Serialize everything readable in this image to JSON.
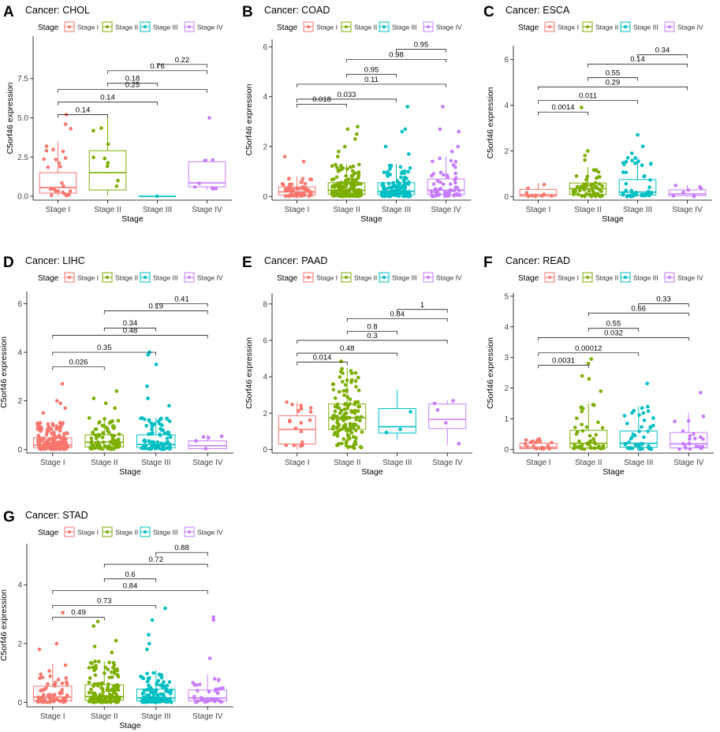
{
  "figure": {
    "stage_colors": {
      "Stage I": "#F8766D",
      "Stage II": "#7CAE00",
      "Stage III": "#00BFC4",
      "Stage IV": "#C77CFF"
    },
    "legend_title": "Stage",
    "legend_labels": [
      "Stage I",
      "Stage II",
      "Stage III",
      "Stage IV"
    ]
  },
  "chart_data": [
    {
      "panel": "A",
      "title": "Cancer: CHOL",
      "type": "boxplot",
      "categories": [
        "Stage I",
        "Stage II",
        "Stage III",
        "Stage IV"
      ],
      "xlabel": "Stage",
      "ylabel": "C5orf46 expression",
      "yticks": [
        0.0,
        2.5,
        5.0,
        7.5
      ],
      "ytick_labels": [
        "0.0",
        "2.5",
        "5.0",
        "7.5"
      ],
      "ylim": [
        -0.25,
        10.2
      ],
      "boxes": [
        {
          "min": 0,
          "q1": 0.2,
          "median": 0.55,
          "q3": 1.5,
          "max": 3.5,
          "n": 22
        },
        {
          "min": 0.05,
          "q1": 0.4,
          "median": 1.5,
          "q3": 2.9,
          "max": 5.0,
          "n": 9
        },
        {
          "min": 0,
          "q1": 0,
          "median": 0,
          "q3": 0,
          "max": 0,
          "n": 1
        },
        {
          "min": 0.4,
          "q1": 0.6,
          "median": 0.85,
          "q3": 2.2,
          "max": 2.4,
          "n": 7
        }
      ],
      "outliers": [
        [
          0,
          5.2
        ],
        [
          0,
          4.6
        ],
        [
          0,
          4.3
        ],
        [
          3,
          5.0
        ]
      ],
      "pvalues": [
        {
          "a": 2,
          "b": 3,
          "label": "0.22",
          "y": 8.4
        },
        {
          "a": 1,
          "b": 3,
          "label": "0.76",
          "y": 8.0
        },
        {
          "a": 1,
          "b": 2,
          "label": "0.18",
          "y": 7.2
        },
        {
          "a": 0,
          "b": 3,
          "label": "0.25",
          "y": 6.8
        },
        {
          "a": 0,
          "b": 2,
          "label": "0.14",
          "y": 6.0
        },
        {
          "a": 0,
          "b": 1,
          "label": "0.14",
          "y": 5.2
        }
      ]
    },
    {
      "panel": "B",
      "title": "Cancer: COAD",
      "type": "boxplot",
      "categories": [
        "Stage I",
        "Stage II",
        "Stage III",
        "Stage IV"
      ],
      "xlabel": "Stage",
      "ylabel": "C5orf46 expression",
      "yticks": [
        0,
        2,
        4,
        6
      ],
      "ytick_labels": [
        "0",
        "2",
        "4",
        "6"
      ],
      "ylim": [
        -0.15,
        6.3
      ],
      "boxes": [
        {
          "min": 0,
          "q1": 0.05,
          "median": 0.18,
          "q3": 0.38,
          "max": 0.8,
          "n": 60
        },
        {
          "min": 0,
          "q1": 0.08,
          "median": 0.25,
          "q3": 0.55,
          "max": 1.3,
          "n": 160
        },
        {
          "min": 0,
          "q1": 0.07,
          "median": 0.2,
          "q3": 0.55,
          "max": 1.3,
          "n": 110
        },
        {
          "min": 0,
          "q1": 0.07,
          "median": 0.25,
          "q3": 0.7,
          "max": 1.6,
          "n": 60
        }
      ],
      "outliers": [
        [
          0,
          1.6
        ],
        [
          0,
          1.4
        ],
        [
          1,
          2.8
        ],
        [
          1,
          2.7
        ],
        [
          1,
          2.5
        ],
        [
          1,
          2.3
        ],
        [
          1,
          2.0
        ],
        [
          1,
          1.8
        ],
        [
          1,
          1.6
        ],
        [
          2,
          3.6
        ],
        [
          2,
          2.7
        ],
        [
          2,
          2.6
        ],
        [
          2,
          2.0
        ],
        [
          2,
          1.7
        ],
        [
          3,
          3.6
        ],
        [
          3,
          2.7
        ],
        [
          3,
          2.6
        ],
        [
          3,
          2.0
        ],
        [
          3,
          1.8
        ]
      ],
      "pvalues": [
        {
          "a": 2,
          "b": 3,
          "label": "0.95",
          "y": 5.9
        },
        {
          "a": 1,
          "b": 3,
          "label": "0.98",
          "y": 5.5
        },
        {
          "a": 1,
          "b": 2,
          "label": "0.95",
          "y": 4.9
        },
        {
          "a": 0,
          "b": 3,
          "label": "0.11",
          "y": 4.5
        },
        {
          "a": 0,
          "b": 2,
          "label": "0.033",
          "y": 3.9
        },
        {
          "a": 0,
          "b": 1,
          "label": "0.018",
          "y": 3.7
        }
      ]
    },
    {
      "panel": "C",
      "title": "Cancer: ESCA",
      "type": "boxplot",
      "categories": [
        "Stage I",
        "Stage II",
        "Stage III",
        "Stage IV"
      ],
      "xlabel": "Stage",
      "ylabel": "C5orf46 expression",
      "yticks": [
        0,
        2,
        4,
        6
      ],
      "ytick_labels": [
        "0",
        "2",
        "4",
        "6"
      ],
      "ylim": [
        -0.15,
        6.6
      ],
      "boxes": [
        {
          "min": 0,
          "q1": 0.02,
          "median": 0.08,
          "q3": 0.32,
          "max": 0.6,
          "n": 10
        },
        {
          "min": 0,
          "q1": 0.1,
          "median": 0.35,
          "q3": 0.6,
          "max": 1.3,
          "n": 60
        },
        {
          "min": 0,
          "q1": 0.07,
          "median": 0.2,
          "q3": 0.75,
          "max": 1.7,
          "n": 50
        },
        {
          "min": 0,
          "q1": 0.04,
          "median": 0.12,
          "q3": 0.3,
          "max": 0.5,
          "n": 8
        }
      ],
      "outliers": [
        [
          1,
          3.9
        ],
        [
          1,
          2.0
        ],
        [
          1,
          1.8
        ],
        [
          1,
          1.6
        ],
        [
          2,
          2.7
        ],
        [
          2,
          2.2
        ],
        [
          2,
          1.9
        ],
        [
          2,
          1.7
        ]
      ],
      "pvalues": [
        {
          "a": 2,
          "b": 3,
          "label": "0.34",
          "y": 6.2
        },
        {
          "a": 1,
          "b": 3,
          "label": "0.14",
          "y": 5.8
        },
        {
          "a": 1,
          "b": 2,
          "label": "0.55",
          "y": 5.2
        },
        {
          "a": 0,
          "b": 3,
          "label": "0.29",
          "y": 4.8
        },
        {
          "a": 0,
          "b": 2,
          "label": "0.011",
          "y": 4.2
        },
        {
          "a": 0,
          "b": 1,
          "label": "0.0014",
          "y": 3.7
        }
      ]
    },
    {
      "panel": "D",
      "title": "Cancer: LIHC",
      "type": "boxplot",
      "categories": [
        "Stage I",
        "Stage II",
        "Stage III",
        "Stage IV"
      ],
      "xlabel": "Stage",
      "ylabel": "C5orf46 expression",
      "yticks": [
        0,
        2,
        4,
        6
      ],
      "ytick_labels": [
        "0",
        "2",
        "4",
        "6"
      ],
      "ylim": [
        -0.15,
        6.5
      ],
      "boxes": [
        {
          "min": 0,
          "q1": 0.07,
          "median": 0.18,
          "q3": 0.48,
          "max": 1.1,
          "n": 170
        },
        {
          "min": 0,
          "q1": 0.1,
          "median": 0.3,
          "q3": 0.6,
          "max": 1.3,
          "n": 85
        },
        {
          "min": 0,
          "q1": 0.07,
          "median": 0.2,
          "q3": 0.6,
          "max": 1.3,
          "n": 85
        },
        {
          "min": 0,
          "q1": 0.03,
          "median": 0.15,
          "q3": 0.35,
          "max": 0.6,
          "n": 5
        }
      ],
      "outliers": [
        [
          0,
          2.7
        ],
        [
          0,
          2.0
        ],
        [
          0,
          1.9
        ],
        [
          0,
          1.7
        ],
        [
          0,
          1.5
        ],
        [
          1,
          2.4
        ],
        [
          1,
          2.1
        ],
        [
          1,
          1.9
        ],
        [
          1,
          1.7
        ],
        [
          2,
          4.0
        ],
        [
          2,
          3.9
        ],
        [
          2,
          3.5
        ],
        [
          2,
          2.6
        ],
        [
          2,
          2.1
        ],
        [
          2,
          1.8
        ]
      ],
      "pvalues": [
        {
          "a": 2,
          "b": 3,
          "label": "0.41",
          "y": 6.0
        },
        {
          "a": 1,
          "b": 3,
          "label": "0.19",
          "y": 5.7
        },
        {
          "a": 1,
          "b": 2,
          "label": "0.34",
          "y": 5.0
        },
        {
          "a": 0,
          "b": 3,
          "label": "0.48",
          "y": 4.7
        },
        {
          "a": 0,
          "b": 2,
          "label": "0.35",
          "y": 4.0
        },
        {
          "a": 0,
          "b": 1,
          "label": "0.026",
          "y": 3.4
        }
      ]
    },
    {
      "panel": "E",
      "title": "Cancer: PAAD",
      "type": "boxplot",
      "categories": [
        "Stage I",
        "Stage II",
        "Stage III",
        "Stage IV"
      ],
      "xlabel": "Stage",
      "ylabel": "C5orf46 expression",
      "yticks": [
        0,
        2,
        4,
        6,
        8
      ],
      "ytick_labels": [
        "0",
        "2",
        "4",
        "6",
        "8"
      ],
      "ylim": [
        -0.2,
        8.6
      ],
      "boxes": [
        {
          "min": 0,
          "q1": 0.3,
          "median": 1.1,
          "q3": 1.85,
          "max": 2.6,
          "n": 20
        },
        {
          "min": 0,
          "q1": 1.1,
          "median": 1.75,
          "q3": 2.5,
          "max": 4.5,
          "n": 140
        },
        {
          "min": 0.55,
          "q1": 0.9,
          "median": 1.25,
          "q3": 2.25,
          "max": 3.3,
          "n": 3
        },
        {
          "min": 0.25,
          "q1": 1.15,
          "median": 1.65,
          "q3": 2.5,
          "max": 2.7,
          "n": 5
        }
      ],
      "outliers": [
        [
          1,
          4.85
        ]
      ],
      "pvalues": [
        {
          "a": 2,
          "b": 3,
          "label": "1",
          "y": 7.7
        },
        {
          "a": 1,
          "b": 3,
          "label": "0.84",
          "y": 7.2
        },
        {
          "a": 1,
          "b": 2,
          "label": "0.8",
          "y": 6.5
        },
        {
          "a": 0,
          "b": 3,
          "label": "0.3",
          "y": 6.0
        },
        {
          "a": 0,
          "b": 2,
          "label": "0.48",
          "y": 5.3
        },
        {
          "a": 0,
          "b": 1,
          "label": "0.014",
          "y": 4.8
        }
      ]
    },
    {
      "panel": "F",
      "title": "Cancer: READ",
      "type": "boxplot",
      "categories": [
        "Stage I",
        "Stage II",
        "Stage III",
        "Stage IV"
      ],
      "xlabel": "Stage",
      "ylabel": "C5orf46 expression",
      "yticks": [
        0,
        1,
        2,
        3,
        4,
        5
      ],
      "ytick_labels": [
        "0",
        "1",
        "2",
        "3",
        "4",
        "5"
      ],
      "ylim": [
        -0.12,
        5.1
      ],
      "boxes": [
        {
          "min": 0,
          "q1": 0.02,
          "median": 0.07,
          "q3": 0.2,
          "max": 0.35,
          "n": 20
        },
        {
          "min": 0,
          "q1": 0.05,
          "median": 0.2,
          "q3": 0.62,
          "max": 1.5,
          "n": 45
        },
        {
          "min": 0,
          "q1": 0.07,
          "median": 0.2,
          "q3": 0.6,
          "max": 1.4,
          "n": 45
        },
        {
          "min": 0,
          "q1": 0.05,
          "median": 0.18,
          "q3": 0.55,
          "max": 1.2,
          "n": 22
        }
      ],
      "outliers": [
        [
          1,
          2.95
        ],
        [
          1,
          2.8
        ],
        [
          1,
          2.4
        ],
        [
          1,
          2.3
        ],
        [
          1,
          1.9
        ],
        [
          2,
          2.15
        ],
        [
          3,
          1.85
        ]
      ],
      "pvalues": [
        {
          "a": 2,
          "b": 3,
          "label": "0.33",
          "y": 4.75
        },
        {
          "a": 1,
          "b": 3,
          "label": "0.66",
          "y": 4.45
        },
        {
          "a": 1,
          "b": 2,
          "label": "0.55",
          "y": 3.95
        },
        {
          "a": 0,
          "b": 3,
          "label": "0.032",
          "y": 3.65
        },
        {
          "a": 0,
          "b": 2,
          "label": "0.00012",
          "y": 3.15
        },
        {
          "a": 0,
          "b": 1,
          "label": "0.0031",
          "y": 2.75
        }
      ]
    },
    {
      "panel": "G",
      "title": "Cancer: STAD",
      "type": "boxplot",
      "categories": [
        "Stage I",
        "Stage II",
        "Stage III",
        "Stage IV"
      ],
      "xlabel": "Stage",
      "ylabel": "C5orf46 expression",
      "yticks": [
        0,
        2,
        4
      ],
      "ytick_labels": [
        "0",
        "2",
        "4"
      ],
      "ylim": [
        -0.15,
        5.4
      ],
      "boxes": [
        {
          "min": 0,
          "q1": 0.05,
          "median": 0.18,
          "q3": 0.55,
          "max": 1.3,
          "n": 60
        },
        {
          "min": 0,
          "q1": 0.07,
          "median": 0.2,
          "q3": 0.6,
          "max": 1.4,
          "n": 140
        },
        {
          "min": 0,
          "q1": 0.05,
          "median": 0.15,
          "q3": 0.45,
          "max": 1.1,
          "n": 120
        },
        {
          "min": 0,
          "q1": 0.05,
          "median": 0.15,
          "q3": 0.42,
          "max": 0.95,
          "n": 40
        }
      ],
      "outliers": [
        [
          0,
          3.05
        ],
        [
          0,
          2.0
        ],
        [
          0,
          1.8
        ],
        [
          1,
          2.75
        ],
        [
          1,
          2.6
        ],
        [
          1,
          2.1
        ],
        [
          1,
          1.9
        ],
        [
          1,
          1.7
        ],
        [
          2,
          3.2
        ],
        [
          2,
          2.8
        ],
        [
          2,
          2.3
        ],
        [
          2,
          2.0
        ],
        [
          2,
          1.8
        ],
        [
          3,
          2.9
        ],
        [
          3,
          2.8
        ],
        [
          3,
          1.5
        ]
      ],
      "pvalues": [
        {
          "a": 2,
          "b": 3,
          "label": "0.88",
          "y": 5.1
        },
        {
          "a": 1,
          "b": 3,
          "label": "0.72",
          "y": 4.7
        },
        {
          "a": 1,
          "b": 2,
          "label": "0.6",
          "y": 4.2
        },
        {
          "a": 0,
          "b": 3,
          "label": "0.84",
          "y": 3.8
        },
        {
          "a": 0,
          "b": 2,
          "label": "0.73",
          "y": 3.3
        },
        {
          "a": 0,
          "b": 1,
          "label": "0.49",
          "y": 2.9
        }
      ]
    }
  ]
}
